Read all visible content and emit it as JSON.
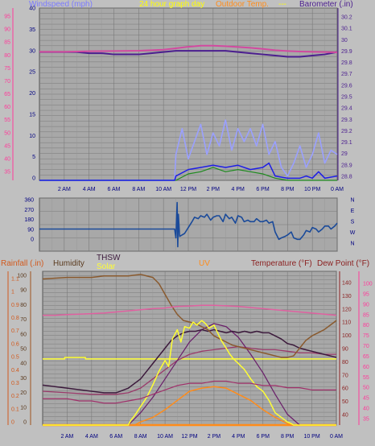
{
  "header": {
    "title": "24 hour graph day",
    "outdoor_temp_label": "Outdoor Temp.",
    "dashes": "---"
  },
  "colors": {
    "background": "#c0c0c0",
    "plot_bg": "#a8a8a8",
    "grid": "#7a7a7a",
    "barometer": "#4b1e8f",
    "temperature": "#d24aa0",
    "wind_gust": "#9aa0ff",
    "wind_avg": "#1e1ee6",
    "wind_green": "#1e8a1e",
    "direction": "#1a4a9a",
    "rain": "#a0521e",
    "humidity": "#8a5a2e",
    "thsw": "#3c1a3c",
    "solar": "#ffff33",
    "uv": "#ff8c1a",
    "uv_arc": "#6a1e6a",
    "temp2": "#e060a0",
    "dewpoint": "#8a1e4a",
    "rain_axis": "#d25a1e",
    "pink_axis": "#ff3a9a"
  },
  "chart_data": [
    {
      "id": "wind_barometer",
      "type": "line",
      "title": "24 hour graph day",
      "ylabel_left": "Windspeed (mph)",
      "ylabel_right": "Barometer (.in)",
      "left_ticks": [
        "0",
        "5",
        "10",
        "15",
        "20",
        "25",
        "30",
        "35",
        "40"
      ],
      "outer_ticks": [
        "35",
        "40",
        "45",
        "50",
        "55",
        "60",
        "65",
        "70",
        "75",
        "80",
        "85",
        "90",
        "95"
      ],
      "right_ticks": [
        "28.8",
        "28.9",
        "29",
        "29.1",
        "29.2",
        "29.3",
        "29.4",
        "29.5",
        "29.6",
        "29.7",
        "29.8",
        "29.9",
        "30",
        "30.1",
        "30.2"
      ],
      "x_ticks": [
        "2 AM",
        "4 AM",
        "6 AM",
        "8 AM",
        "10 AM",
        "12 PM",
        "2 PM",
        "4 PM",
        "6 PM",
        "8 PM",
        "10 PM",
        "0 AM"
      ],
      "x_range": [
        0,
        24
      ],
      "ylim_left": [
        0,
        40
      ],
      "ylim_outer": [
        30,
        95
      ],
      "ylim_right": [
        28.8,
        30.25
      ],
      "series": [
        {
          "key": "barometer",
          "x": [
            0,
            1,
            2,
            3,
            4,
            5,
            6,
            7,
            8,
            9,
            10,
            11,
            12,
            13,
            14,
            15,
            16,
            17,
            18,
            19,
            20,
            21,
            22,
            23,
            24
          ],
          "values": [
            29.88,
            29.88,
            29.88,
            29.88,
            29.87,
            29.87,
            29.86,
            29.86,
            29.86,
            29.87,
            29.88,
            29.89,
            29.89,
            29.89,
            29.89,
            29.89,
            29.88,
            29.87,
            29.86,
            29.85,
            29.84,
            29.84,
            29.85,
            29.86,
            29.88
          ]
        },
        {
          "key": "temperature",
          "x": [
            0,
            2,
            4,
            6,
            8,
            10,
            11,
            12,
            13,
            14,
            15,
            16,
            17,
            18,
            19,
            20,
            21,
            22,
            23,
            24
          ],
          "values": [
            78.5,
            78.5,
            78.7,
            78.8,
            78.9,
            79.3,
            79.8,
            80.4,
            80.8,
            80.8,
            80.6,
            80.3,
            80.0,
            79.6,
            79.1,
            78.8,
            78.6,
            78.5,
            78.4,
            78.3
          ]
        },
        {
          "key": "wind_gust",
          "x": [
            0,
            10.9,
            11,
            11.5,
            12,
            12.5,
            13,
            13.5,
            14,
            14.5,
            15,
            15.5,
            16,
            16.5,
            17,
            17.5,
            18,
            18.5,
            19,
            19.5,
            20,
            20.5,
            21,
            21.5,
            22,
            22.5,
            23,
            23.5,
            24
          ],
          "values": [
            0,
            0,
            6,
            12,
            5,
            9,
            13,
            6,
            11,
            8,
            14,
            7,
            12,
            9,
            12,
            8,
            13,
            6,
            9,
            3,
            1,
            4,
            8,
            3,
            6,
            11,
            4,
            7,
            6
          ]
        },
        {
          "key": "wind_avg",
          "x": [
            0,
            10.9,
            11,
            12,
            13,
            14,
            15,
            16,
            17,
            18,
            18.5,
            19,
            20,
            21,
            21.5,
            22,
            22.5,
            23,
            24
          ],
          "values": [
            0,
            0,
            1,
            2.5,
            3,
            3.5,
            3,
            3.5,
            2.5,
            3,
            4,
            1,
            0.5,
            0.5,
            1,
            0.5,
            2,
            0.5,
            1
          ]
        },
        {
          "key": "wind_green",
          "x": [
            0,
            11,
            12,
            13,
            14,
            15,
            16,
            17,
            18,
            19,
            20,
            24
          ],
          "values": [
            0,
            0,
            1.5,
            2,
            3,
            2,
            2.5,
            2,
            1.5,
            0.5,
            0,
            0
          ]
        }
      ]
    },
    {
      "id": "wind_direction",
      "type": "line",
      "left_ticks": [
        "0",
        "90",
        "180",
        "270",
        "360"
      ],
      "right_ticks": [
        "N",
        "W",
        "S",
        "E",
        "N"
      ],
      "ylim": [
        0,
        360
      ],
      "series": [
        {
          "key": "direction",
          "x": [
            0,
            1,
            2,
            3,
            4,
            5,
            6,
            7,
            8,
            9,
            10,
            10.9,
            11.0,
            11.1,
            11.15,
            11.2,
            11.3,
            11.5,
            11.7,
            12,
            12.3,
            12.5,
            12.8,
            13,
            13.3,
            13.5,
            13.8,
            14,
            14.3,
            14.5,
            14.8,
            15,
            15.3,
            15.5,
            15.8,
            16,
            16.3,
            16.5,
            16.8,
            17,
            17.3,
            17.5,
            17.8,
            18,
            18.3,
            18.5,
            18.8,
            19,
            19.3,
            19.5,
            19.8,
            20,
            20.3,
            20.5,
            20.8,
            21,
            21.3,
            21.5,
            21.8,
            22,
            22.3,
            22.5,
            22.8,
            23,
            23.3,
            23.5,
            23.8,
            24
          ],
          "values": [
            150,
            150,
            150,
            150,
            150,
            150,
            150,
            150,
            150,
            150,
            150,
            150,
            90,
            330,
            30,
            250,
            100,
            110,
            120,
            160,
            200,
            230,
            220,
            240,
            230,
            250,
            210,
            230,
            240,
            240,
            200,
            250,
            220,
            230,
            190,
            240,
            230,
            200,
            210,
            200,
            200,
            220,
            200,
            200,
            210,
            190,
            200,
            130,
            80,
            90,
            100,
            110,
            130,
            90,
            80,
            80,
            110,
            140,
            130,
            160,
            150,
            130,
            150,
            170,
            170,
            150,
            170,
            190
          ]
        }
      ]
    },
    {
      "id": "weather_multi",
      "type": "line",
      "legend": [
        "Rainfall (.in)",
        "Humidity",
        "THSW",
        "Solar",
        "UV",
        "Temperature (°F)",
        "Dew Point (°F)"
      ],
      "rain_ticks": [
        "0",
        "0.1",
        "0.2",
        "0.3",
        "0.4",
        "0.5",
        "0.6",
        "0.7",
        "0.8",
        "0.9",
        "1",
        "1.1"
      ],
      "humidity_ticks": [
        "0",
        "10",
        "20",
        "30",
        "40",
        "50",
        "60",
        "70",
        "80",
        "90",
        "100"
      ],
      "temp_ticks": [
        "40",
        "50",
        "60",
        "70",
        "80",
        "90",
        "100",
        "110",
        "120",
        "130",
        "140"
      ],
      "pink_ticks": [
        "35",
        "40",
        "45",
        "50",
        "55",
        "60",
        "65",
        "70",
        "75",
        "80",
        "85",
        "90",
        "95",
        "100"
      ],
      "x_ticks": [
        "2 AM",
        "4 AM",
        "6 AM",
        "8 AM",
        "10 AM",
        "12 PM",
        "2 PM",
        "4 PM",
        "6 PM",
        "8 PM",
        "10 PM",
        "0 AM"
      ],
      "x_range": [
        0,
        24
      ],
      "ylim_humidity": [
        0,
        100
      ],
      "ylim_pink": [
        30,
        100
      ],
      "series": [
        {
          "key": "humidity",
          "x": [
            0,
            2,
            4,
            5,
            6,
            7,
            8,
            8.5,
            9,
            9.5,
            10,
            10.5,
            11,
            11.5,
            12,
            12.5,
            13,
            13.5,
            14,
            14.5,
            15,
            15.5,
            16,
            16.5,
            17,
            17.5,
            18,
            18.5,
            19,
            19.5,
            20,
            20.5,
            21,
            21.5,
            22,
            22.5,
            23,
            23.5,
            24
          ],
          "values": [
            95,
            96,
            96,
            97,
            97,
            97,
            98,
            97,
            96,
            92,
            85,
            78,
            72,
            68,
            67,
            66,
            64,
            62,
            58,
            56,
            54,
            52,
            51,
            50,
            49,
            48,
            47,
            46,
            45,
            44,
            44,
            45,
            50,
            55,
            58,
            60,
            62,
            65,
            68
          ]
        },
        {
          "key": "thsw",
          "x": [
            0,
            1,
            2,
            3,
            4,
            5,
            6,
            7,
            8,
            9,
            10,
            10.5,
            11,
            11.5,
            12,
            12.5,
            13,
            13.5,
            14,
            14.5,
            15,
            15.5,
            16,
            16.5,
            17,
            17.5,
            18,
            18.5,
            19,
            19.5,
            20,
            20.5,
            21,
            22,
            23,
            24
          ],
          "values": [
            26,
            25,
            24,
            23,
            22,
            21,
            21,
            24,
            30,
            40,
            50,
            55,
            58,
            60,
            61,
            61,
            62,
            61,
            62,
            61,
            60,
            61,
            60,
            61,
            60,
            61,
            60,
            60,
            58,
            56,
            53,
            52,
            50,
            48,
            46,
            44
          ]
        },
        {
          "key": "solar",
          "x": [
            0,
            7.0,
            7.2,
            7.5,
            8,
            8.5,
            9,
            9.5,
            10,
            10.3,
            10.6,
            11,
            11.3,
            11.6,
            12,
            12.3,
            12.6,
            13,
            13.3,
            13.6,
            14,
            14.3,
            14.6,
            15,
            15.3,
            15.6,
            16,
            16.5,
            17,
            17.5,
            18,
            18.5,
            19,
            19.5,
            20,
            20.3,
            20.5,
            24
          ],
          "values": [
            0,
            0,
            3,
            6,
            12,
            18,
            26,
            35,
            42,
            38,
            56,
            62,
            54,
            64,
            63,
            67,
            65,
            68,
            66,
            63,
            65,
            60,
            55,
            50,
            46,
            43,
            40,
            36,
            30,
            25,
            22,
            16,
            8,
            5,
            2,
            1,
            0,
            0
          ]
        },
        {
          "key": "uv",
          "x": [
            0,
            7.5,
            8,
            9,
            10,
            11,
            12,
            13,
            14,
            15,
            16,
            17,
            18,
            19,
            20,
            20.5,
            21,
            24
          ],
          "values": [
            0,
            0,
            2,
            5,
            10,
            16,
            22,
            24,
            25,
            24,
            20,
            16,
            10,
            5,
            1,
            0,
            0,
            0
          ]
        },
        {
          "key": "uv_arc",
          "x": [
            7,
            8,
            9,
            10,
            11,
            12,
            13,
            14,
            15,
            16,
            17,
            18,
            19,
            20,
            21
          ],
          "values": [
            0,
            8,
            18,
            30,
            42,
            54,
            62,
            66,
            64,
            57,
            46,
            34,
            20,
            7,
            0
          ]
        },
        {
          "key": "temp_line",
          "x": [
            0,
            1,
            2,
            3,
            4,
            5,
            6,
            7,
            8,
            9,
            10,
            11,
            12,
            13,
            14,
            15,
            16,
            17,
            18,
            19,
            20,
            21,
            22,
            23,
            24
          ],
          "values": [
            80,
            80,
            80.3,
            80.5,
            80.7,
            81,
            81.5,
            82,
            82.5,
            83,
            83.3,
            84,
            84.2,
            84.5,
            84.5,
            84.3,
            84,
            83.5,
            83,
            82.5,
            82,
            81.5,
            81,
            80.5,
            80
          ]
        },
        {
          "key": "dew_point",
          "x": [
            0,
            1,
            2,
            3,
            4,
            5,
            6,
            7,
            8,
            9,
            10,
            11,
            12,
            13,
            14,
            15,
            16,
            17,
            18,
            19,
            20,
            21,
            22,
            23,
            24
          ],
          "values": [
            42,
            42,
            42,
            41,
            41,
            40,
            40,
            41,
            42,
            44,
            46,
            48,
            49,
            49,
            50,
            50,
            49,
            49,
            48,
            48,
            47,
            47,
            46,
            46,
            46
          ]
        },
        {
          "key": "rain",
          "x": [
            0,
            24
          ],
          "values": [
            0,
            0
          ]
        },
        {
          "key": "humid_mid",
          "x": [
            0,
            2,
            4,
            6,
            7,
            8,
            9,
            10,
            11,
            12,
            13,
            14,
            15,
            16,
            17,
            18,
            19,
            20,
            21,
            22,
            23,
            24
          ],
          "values": [
            22,
            21,
            20,
            20,
            21,
            24,
            30,
            36,
            42,
            46,
            48,
            49,
            50,
            51,
            50,
            49,
            49,
            48,
            47,
            47,
            46,
            46
          ]
        },
        {
          "key": "yellow_flat",
          "x": [
            0,
            1.8,
            1.8,
            3.5,
            3.5,
            24
          ],
          "values": [
            43,
            43,
            44,
            44,
            43,
            43
          ]
        }
      ]
    }
  ]
}
